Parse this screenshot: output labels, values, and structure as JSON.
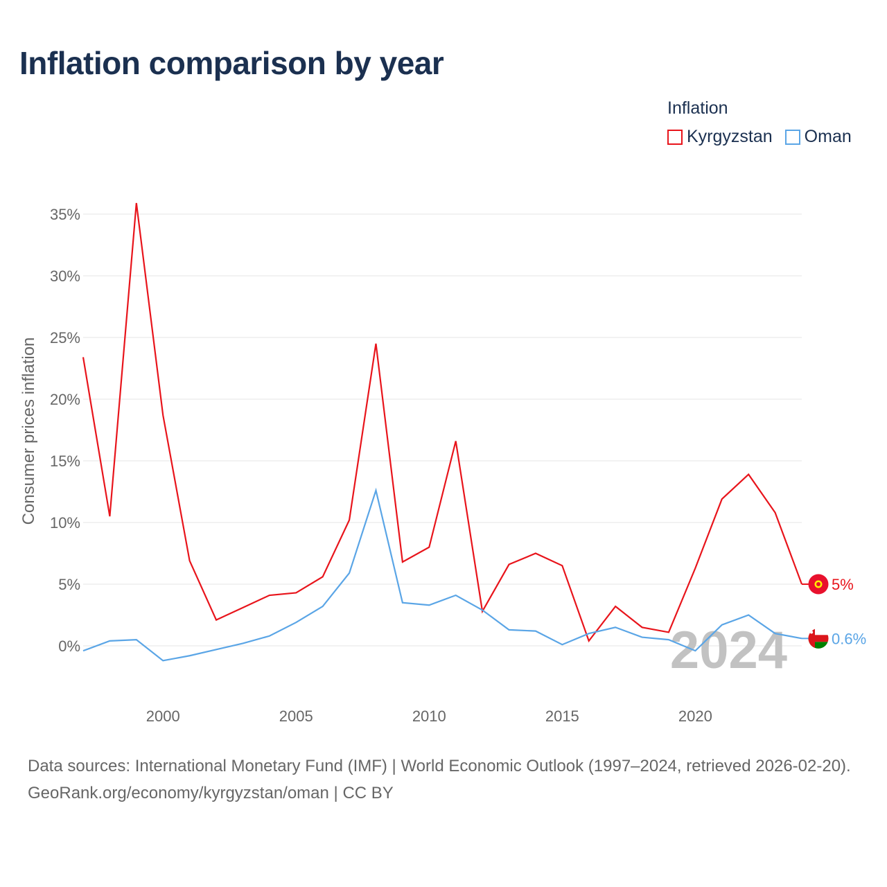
{
  "title": "Inflation comparison by year",
  "legend": {
    "title": "Inflation",
    "items": [
      {
        "label": "Kyrgyzstan",
        "color": "#e8141b"
      },
      {
        "label": "Oman",
        "color": "#5aa5e6"
      }
    ]
  },
  "chart_data": {
    "type": "line",
    "title": "Inflation comparison by year",
    "xlabel": "",
    "ylabel": "Consumer prices inflation",
    "xlim": [
      1997,
      2024
    ],
    "ylim": [
      -4,
      37
    ],
    "grid": true,
    "legend_position": "top-right",
    "x": [
      1997,
      1998,
      1999,
      2000,
      2001,
      2002,
      2003,
      2004,
      2005,
      2006,
      2007,
      2008,
      2009,
      2010,
      2011,
      2012,
      2013,
      2014,
      2015,
      2016,
      2017,
      2018,
      2019,
      2020,
      2021,
      2022,
      2023,
      2024
    ],
    "series": [
      {
        "name": "Kyrgyzstan",
        "color": "#e8141b",
        "values": [
          23.4,
          10.5,
          35.9,
          18.7,
          6.9,
          2.1,
          3.1,
          4.1,
          4.3,
          5.6,
          10.2,
          24.5,
          6.8,
          8.0,
          16.6,
          2.8,
          6.6,
          7.5,
          6.5,
          0.4,
          3.2,
          1.5,
          1.1,
          6.3,
          11.9,
          13.9,
          10.8,
          5.0
        ]
      },
      {
        "name": "Oman",
        "color": "#5aa5e6",
        "values": [
          -0.4,
          0.4,
          0.5,
          -1.2,
          -0.8,
          -0.3,
          0.2,
          0.8,
          1.9,
          3.2,
          5.9,
          12.6,
          3.5,
          3.3,
          4.1,
          2.9,
          1.3,
          1.2,
          0.1,
          1.0,
          1.5,
          0.7,
          0.5,
          -0.4,
          1.7,
          2.5,
          1.0,
          0.6
        ]
      }
    ],
    "y_ticks": [
      0,
      5,
      10,
      15,
      20,
      25,
      30,
      35
    ],
    "y_tick_labels": [
      "0%",
      "5%",
      "10%",
      "15%",
      "20%",
      "25%",
      "30%",
      "35%"
    ],
    "x_ticks": [
      2000,
      2005,
      2010,
      2015,
      2020
    ],
    "x_tick_labels": [
      "2000",
      "2005",
      "2010",
      "2015",
      "2020"
    ],
    "end_labels": [
      "5%",
      "0.6%"
    ],
    "current_year": "2024"
  },
  "footer": {
    "sources": "Data sources: International Monetary Fund (IMF) | World Economic Outlook (1997–2024, retrieved 2026-02-20).",
    "credit": "GeoRank.org/economy/kyrgyzstan/oman | CC BY"
  }
}
